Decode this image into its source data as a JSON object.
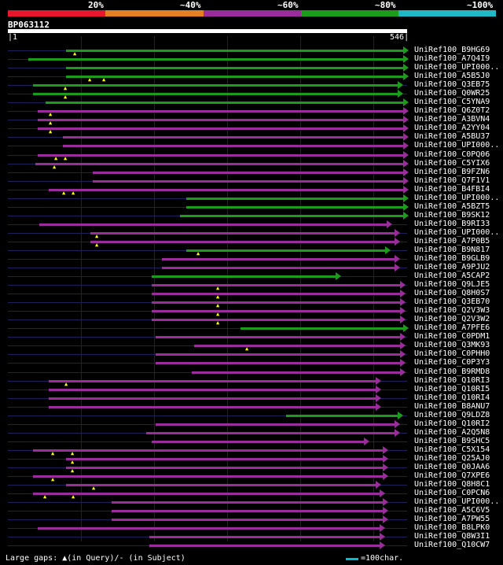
{
  "legend": {
    "segments": [
      {
        "color": "#e8172d"
      },
      {
        "color": "#e67e22"
      },
      {
        "color": "#9b2c9b"
      },
      {
        "color": "#1b9d1b"
      },
      {
        "color": "#1fb8c4"
      }
    ],
    "labels": [
      "20%",
      "~40%",
      "~60%",
      "~80%",
      "~100%"
    ]
  },
  "query": {
    "name": "BP063112",
    "start": "1",
    "end": "546"
  },
  "colors": {
    "green": "#1b9d1b",
    "purple": "#9b2c9b",
    "gap": "#6a2a6a"
  },
  "hits": [
    {
      "label": "UniRef100_B9HG69",
      "c": "g"
    },
    {
      "label": "UniRef100_A7Q4I9",
      "c": "g"
    },
    {
      "label": "UniRef100_UPI000..",
      "c": "g"
    },
    {
      "label": "UniRef100_A5B5J0",
      "c": "g"
    },
    {
      "label": "UniRef100_Q3EB75",
      "c": "g"
    },
    {
      "label": "UniRef100_Q0WR25",
      "c": "g"
    },
    {
      "label": "UniRef100_C5YNA9",
      "c": "g"
    },
    {
      "label": "UniRef100_Q6Z0T2",
      "c": "p"
    },
    {
      "label": "UniRef100_A3BVN4",
      "c": "p"
    },
    {
      "label": "UniRef100_A2YY04",
      "c": "p"
    },
    {
      "label": "UniRef100_A5BU37",
      "c": "p"
    },
    {
      "label": "UniRef100_UPI000..",
      "c": "p"
    },
    {
      "label": "UniRef100_C0PQ06",
      "c": "p"
    },
    {
      "label": "UniRef100_C5YIX6",
      "c": "p"
    },
    {
      "label": "UniRef100_B9FZN6",
      "c": "p"
    },
    {
      "label": "UniRef100_Q7F1V1",
      "c": "p"
    },
    {
      "label": "UniRef100_B4FBI4",
      "c": "p"
    },
    {
      "label": "UniRef100_UPI000..",
      "c": "g"
    },
    {
      "label": "UniRef100_A5BZT5",
      "c": "g"
    },
    {
      "label": "UniRef100_B9SK12",
      "c": "g"
    },
    {
      "label": "UniRef100_B9RI33",
      "c": "p"
    },
    {
      "label": "UniRef100_UPI000..",
      "c": "p"
    },
    {
      "label": "UniRef100_A7P0B5",
      "c": "p"
    },
    {
      "label": "UniRef100_B9N817",
      "c": "g"
    },
    {
      "label": "UniRef100_B9GLB9",
      "c": "p"
    },
    {
      "label": "UniRef100_A9PJU2",
      "c": "p"
    },
    {
      "label": "UniRef100_A5CAP2",
      "c": "g"
    },
    {
      "label": "UniRef100_Q9LJE5",
      "c": "p"
    },
    {
      "label": "UniRef100_Q8H0S7",
      "c": "p"
    },
    {
      "label": "UniRef100_Q3EB70",
      "c": "p"
    },
    {
      "label": "UniRef100_Q2V3W3",
      "c": "p"
    },
    {
      "label": "UniRef100_Q2V3W2",
      "c": "p"
    },
    {
      "label": "UniRef100_A7PFE6",
      "c": "g"
    },
    {
      "label": "UniRef100_C0PDM1",
      "c": "p"
    },
    {
      "label": "UniRef100_Q3MK93",
      "c": "p"
    },
    {
      "label": "UniRef100_C0PHH0",
      "c": "p"
    },
    {
      "label": "UniRef100_C0P3Y3",
      "c": "p"
    },
    {
      "label": "UniRef100_B9RMD8",
      "c": "p"
    },
    {
      "label": "UniRef100_Q10RI3",
      "c": "p"
    },
    {
      "label": "UniRef100_Q10RI5",
      "c": "p"
    },
    {
      "label": "UniRef100_Q10RI4",
      "c": "p"
    },
    {
      "label": "UniRef100_B8ANU7",
      "c": "p"
    },
    {
      "label": "UniRef100_Q9LDZ8",
      "c": "g"
    },
    {
      "label": "UniRef100_Q10RI2",
      "c": "p"
    },
    {
      "label": "UniRef100_A2Q5N8",
      "c": "p"
    },
    {
      "label": "UniRef100_B9SHC5",
      "c": "p"
    },
    {
      "label": "UniRef100_C5X154",
      "c": "p"
    },
    {
      "label": "UniRef100_Q25AJ0",
      "c": "p"
    },
    {
      "label": "UniRef100_Q0JAA6",
      "c": "p"
    },
    {
      "label": "UniRef100_Q7XPE6",
      "c": "p"
    },
    {
      "label": "UniRef100_Q8H8C1",
      "c": "p"
    },
    {
      "label": "UniRef100_C0PCN6",
      "c": "p"
    },
    {
      "label": "UniRef100_UPI000..",
      "c": "p"
    },
    {
      "label": "UniRef100_A5C6V5",
      "c": "p"
    },
    {
      "label": "UniRef100_A7PW55",
      "c": "p"
    },
    {
      "label": "UniRef100_B8LPK0",
      "c": "p"
    },
    {
      "label": "UniRef100_Q8W3I1",
      "c": "p"
    },
    {
      "label": "UniRef100_Q10CW7",
      "c": "p"
    }
  ],
  "footer": {
    "large_gaps": "Large gaps: ▲(in Query)/- (in Subject)",
    "scale": "=100char."
  }
}
